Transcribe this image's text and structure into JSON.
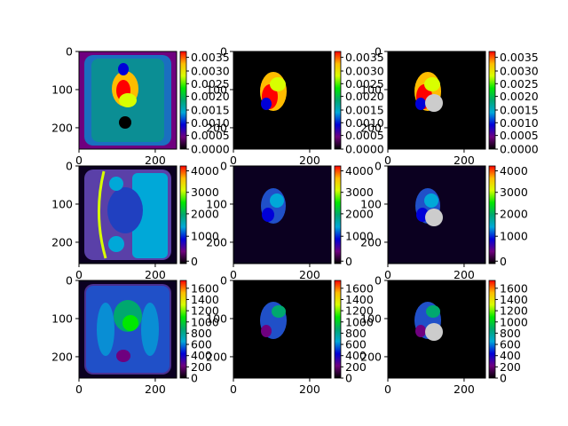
{
  "figure": {
    "rows": [
      {
        "panels": [
          {
            "xticks": [
              "0",
              "200"
            ],
            "yticks": [
              "0",
              "100",
              "200"
            ]
          },
          {
            "xticks": [
              "0",
              "200"
            ],
            "yticks": [
              "0",
              "100",
              "200"
            ]
          },
          {
            "xticks": [
              "0",
              "200"
            ],
            "yticks": [
              "0",
              "100",
              "200"
            ]
          }
        ],
        "colorbar_ticks": [
          [
            "0.0035",
            "0.0030",
            "0.0025",
            "0.0020",
            "0.0015",
            "0.0010",
            "0.0005",
            "0.0000"
          ],
          [
            "0.0035",
            "0.0030",
            "0.0025",
            "0.0020",
            "0.0015",
            "0.0010",
            "0.0005",
            "0.0000"
          ],
          [
            "0.0035",
            "0.0030",
            "0.0025",
            "0.0020",
            "0.0015",
            "0.0010",
            "0.0005",
            "0.0000"
          ]
        ]
      },
      {
        "panels": [
          {
            "xticks": [
              "0",
              "200"
            ],
            "yticks": [
              "0",
              "100",
              "200"
            ]
          },
          {
            "xticks": [
              "0",
              "200"
            ],
            "yticks": [
              "0",
              "100",
              "200"
            ]
          },
          {
            "xticks": [
              "0",
              "200"
            ],
            "yticks": [
              "0",
              "100",
              "200"
            ]
          }
        ],
        "colorbar_ticks": [
          [
            "4000",
            "3000",
            "2000",
            "1000",
            "0"
          ],
          [
            "4000",
            "3000",
            "2000",
            "1000",
            "0"
          ],
          [
            "4000",
            "3000",
            "2000",
            "1000",
            "0"
          ]
        ]
      },
      {
        "panels": [
          {
            "xticks": [
              "0",
              "200"
            ],
            "yticks": [
              "0",
              "100",
              "200"
            ]
          },
          {
            "xticks": [
              "0",
              "200"
            ],
            "yticks": [
              "0",
              "100",
              "200"
            ]
          },
          {
            "xticks": [
              "0",
              "200"
            ],
            "yticks": [
              "0",
              "100",
              "200"
            ]
          }
        ],
        "colorbar_ticks": [
          [
            "1600",
            "1400",
            "1200",
            "1000",
            "800",
            "600",
            "400",
            "200",
            "0"
          ],
          [
            "1600",
            "1400",
            "1200",
            "1000",
            "800",
            "600",
            "400",
            "200",
            "0"
          ],
          [
            "1600",
            "1400",
            "1200",
            "1000",
            "800",
            "600",
            "400",
            "200",
            "0"
          ]
        ]
      }
    ],
    "colormap_stops": [
      "#000000",
      "#6f007f",
      "#0000d8",
      "#00a8d8",
      "#00a86f",
      "#00e800",
      "#d8ff00",
      "#ffbc00",
      "#ff0000",
      "#cccccc"
    ]
  }
}
